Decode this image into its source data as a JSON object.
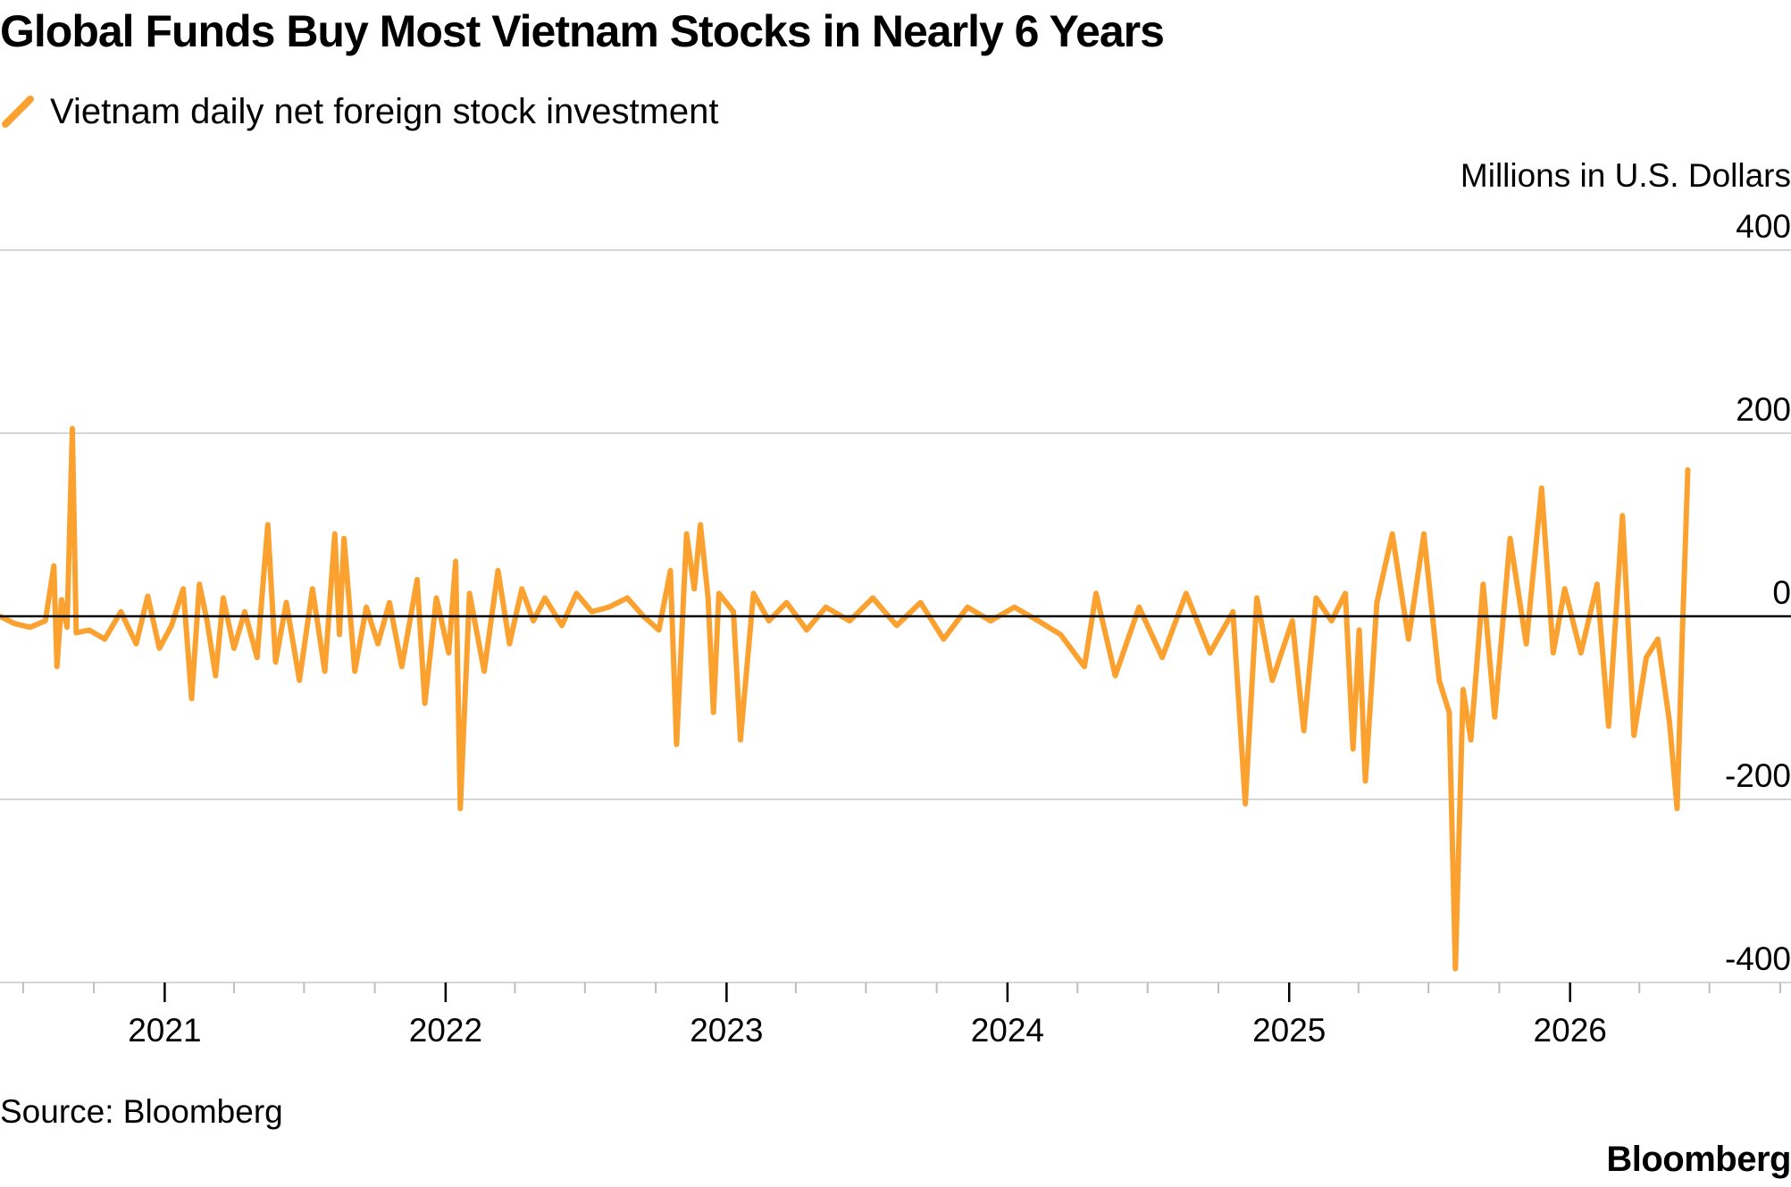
{
  "colors": {
    "series": "#FBA12F",
    "grid": "#d6d6d6",
    "zero_line": "#000000",
    "axis": "#bdbdbd"
  },
  "chart_data": {
    "type": "line",
    "title": "Global Funds Buy Most Vietnam Stocks in Nearly 6 Years",
    "legend": "Vietnam daily net foreign stock investment",
    "legend_position": "top-left",
    "y_unit_label": "Millions in U.S. Dollars",
    "ylim": [
      -400,
      400
    ],
    "y_ticks": [
      {
        "value": 400,
        "label": "400"
      },
      {
        "value": 200,
        "label": "200"
      },
      {
        "value": 0,
        "label": "0"
      },
      {
        "value": -200,
        "label": "-200"
      },
      {
        "value": -400,
        "label": "-400"
      }
    ],
    "xlim": [
      "2020-06-01",
      "2026-10-15"
    ],
    "x_ticks": [
      {
        "date": "2021-01-01",
        "label": "2021"
      },
      {
        "date": "2022-01-01",
        "label": "2022"
      },
      {
        "date": "2023-01-01",
        "label": "2023"
      },
      {
        "date": "2024-01-01",
        "label": "2024"
      },
      {
        "date": "2025-01-01",
        "label": "2025"
      },
      {
        "date": "2026-01-01",
        "label": "2026"
      }
    ],
    "grid": true,
    "series": [
      {
        "name": "Vietnam daily net foreign stock investment",
        "points": [
          [
            "2020-06-01",
            0
          ],
          [
            "2020-06-20",
            -8
          ],
          [
            "2020-07-10",
            -12
          ],
          [
            "2020-07-30",
            -5
          ],
          [
            "2020-08-10",
            55
          ],
          [
            "2020-08-14",
            -55
          ],
          [
            "2020-08-20",
            18
          ],
          [
            "2020-08-27",
            -12
          ],
          [
            "2020-09-03",
            205
          ],
          [
            "2020-09-08",
            -18
          ],
          [
            "2020-09-25",
            -15
          ],
          [
            "2020-10-15",
            -25
          ],
          [
            "2020-11-05",
            5
          ],
          [
            "2020-11-25",
            -30
          ],
          [
            "2020-12-10",
            22
          ],
          [
            "2020-12-25",
            -35
          ],
          [
            "2021-01-10",
            -10
          ],
          [
            "2021-01-25",
            30
          ],
          [
            "2021-02-05",
            -90
          ],
          [
            "2021-02-15",
            35
          ],
          [
            "2021-02-25",
            -5
          ],
          [
            "2021-03-08",
            -65
          ],
          [
            "2021-03-18",
            20
          ],
          [
            "2021-04-01",
            -35
          ],
          [
            "2021-04-15",
            5
          ],
          [
            "2021-05-01",
            -45
          ],
          [
            "2021-05-15",
            100
          ],
          [
            "2021-05-25",
            -50
          ],
          [
            "2021-06-08",
            15
          ],
          [
            "2021-06-25",
            -70
          ],
          [
            "2021-07-12",
            30
          ],
          [
            "2021-07-28",
            -60
          ],
          [
            "2021-08-10",
            90
          ],
          [
            "2021-08-16",
            -20
          ],
          [
            "2021-08-22",
            85
          ],
          [
            "2021-09-05",
            -60
          ],
          [
            "2021-09-20",
            10
          ],
          [
            "2021-10-05",
            -30
          ],
          [
            "2021-10-20",
            15
          ],
          [
            "2021-11-05",
            -55
          ],
          [
            "2021-11-25",
            40
          ],
          [
            "2021-12-05",
            -95
          ],
          [
            "2021-12-20",
            20
          ],
          [
            "2022-01-05",
            -40
          ],
          [
            "2022-01-14",
            60
          ],
          [
            "2022-01-20",
            -210
          ],
          [
            "2022-02-01",
            25
          ],
          [
            "2022-02-20",
            -60
          ],
          [
            "2022-03-10",
            50
          ],
          [
            "2022-03-25",
            -30
          ],
          [
            "2022-04-10",
            30
          ],
          [
            "2022-04-25",
            -5
          ],
          [
            "2022-05-10",
            20
          ],
          [
            "2022-06-01",
            -10
          ],
          [
            "2022-06-20",
            25
          ],
          [
            "2022-07-10",
            5
          ],
          [
            "2022-08-01",
            10
          ],
          [
            "2022-08-25",
            20
          ],
          [
            "2022-09-15",
            0
          ],
          [
            "2022-10-05",
            -15
          ],
          [
            "2022-10-20",
            50
          ],
          [
            "2022-10-28",
            -140
          ],
          [
            "2022-11-10",
            90
          ],
          [
            "2022-11-20",
            30
          ],
          [
            "2022-11-28",
            100
          ],
          [
            "2022-12-08",
            20
          ],
          [
            "2022-12-15",
            -105
          ],
          [
            "2022-12-22",
            25
          ],
          [
            "2023-01-10",
            5
          ],
          [
            "2023-01-19",
            -135
          ],
          [
            "2023-02-05",
            25
          ],
          [
            "2023-02-25",
            -5
          ],
          [
            "2023-03-20",
            15
          ],
          [
            "2023-04-15",
            -15
          ],
          [
            "2023-05-10",
            10
          ],
          [
            "2023-06-10",
            -5
          ],
          [
            "2023-07-10",
            20
          ],
          [
            "2023-08-10",
            -10
          ],
          [
            "2023-09-10",
            15
          ],
          [
            "2023-10-10",
            -25
          ],
          [
            "2023-11-10",
            10
          ],
          [
            "2023-12-10",
            -5
          ],
          [
            "2024-01-10",
            10
          ],
          [
            "2024-02-10",
            -5
          ],
          [
            "2024-03-10",
            -20
          ],
          [
            "2024-04-10",
            -55
          ],
          [
            "2024-04-25",
            25
          ],
          [
            "2024-05-20",
            -65
          ],
          [
            "2024-06-20",
            10
          ],
          [
            "2024-07-20",
            -45
          ],
          [
            "2024-08-20",
            25
          ],
          [
            "2024-09-20",
            -40
          ],
          [
            "2024-10-20",
            5
          ],
          [
            "2024-11-05",
            -205
          ],
          [
            "2024-11-20",
            20
          ],
          [
            "2024-12-10",
            -70
          ],
          [
            "2025-01-05",
            -5
          ],
          [
            "2025-01-20",
            -125
          ],
          [
            "2025-02-05",
            20
          ],
          [
            "2025-02-25",
            -5
          ],
          [
            "2025-03-15",
            25
          ],
          [
            "2025-03-25",
            -145
          ],
          [
            "2025-04-02",
            -15
          ],
          [
            "2025-04-10",
            -180
          ],
          [
            "2025-04-25",
            15
          ],
          [
            "2025-05-15",
            90
          ],
          [
            "2025-06-05",
            -25
          ],
          [
            "2025-06-25",
            90
          ],
          [
            "2025-07-15",
            -70
          ],
          [
            "2025-07-28",
            -105
          ],
          [
            "2025-08-05",
            -385
          ],
          [
            "2025-08-15",
            -80
          ],
          [
            "2025-08-25",
            -135
          ],
          [
            "2025-09-10",
            35
          ],
          [
            "2025-09-25",
            -110
          ],
          [
            "2025-10-15",
            85
          ],
          [
            "2025-11-05",
            -30
          ],
          [
            "2025-11-25",
            140
          ],
          [
            "2025-12-10",
            -40
          ],
          [
            "2025-12-25",
            30
          ],
          [
            "2026-01-15",
            -40
          ],
          [
            "2026-02-05",
            35
          ],
          [
            "2026-02-20",
            -120
          ],
          [
            "2026-03-10",
            110
          ],
          [
            "2026-03-25",
            -130
          ],
          [
            "2026-04-10",
            -45
          ],
          [
            "2026-04-25",
            -25
          ],
          [
            "2026-05-10",
            -115
          ],
          [
            "2026-05-20",
            -210
          ],
          [
            "2026-05-27",
            -15
          ],
          [
            "2026-06-03",
            160
          ]
        ]
      }
    ]
  },
  "footer": {
    "source": "Source: Bloomberg",
    "brand": "Bloomberg"
  }
}
